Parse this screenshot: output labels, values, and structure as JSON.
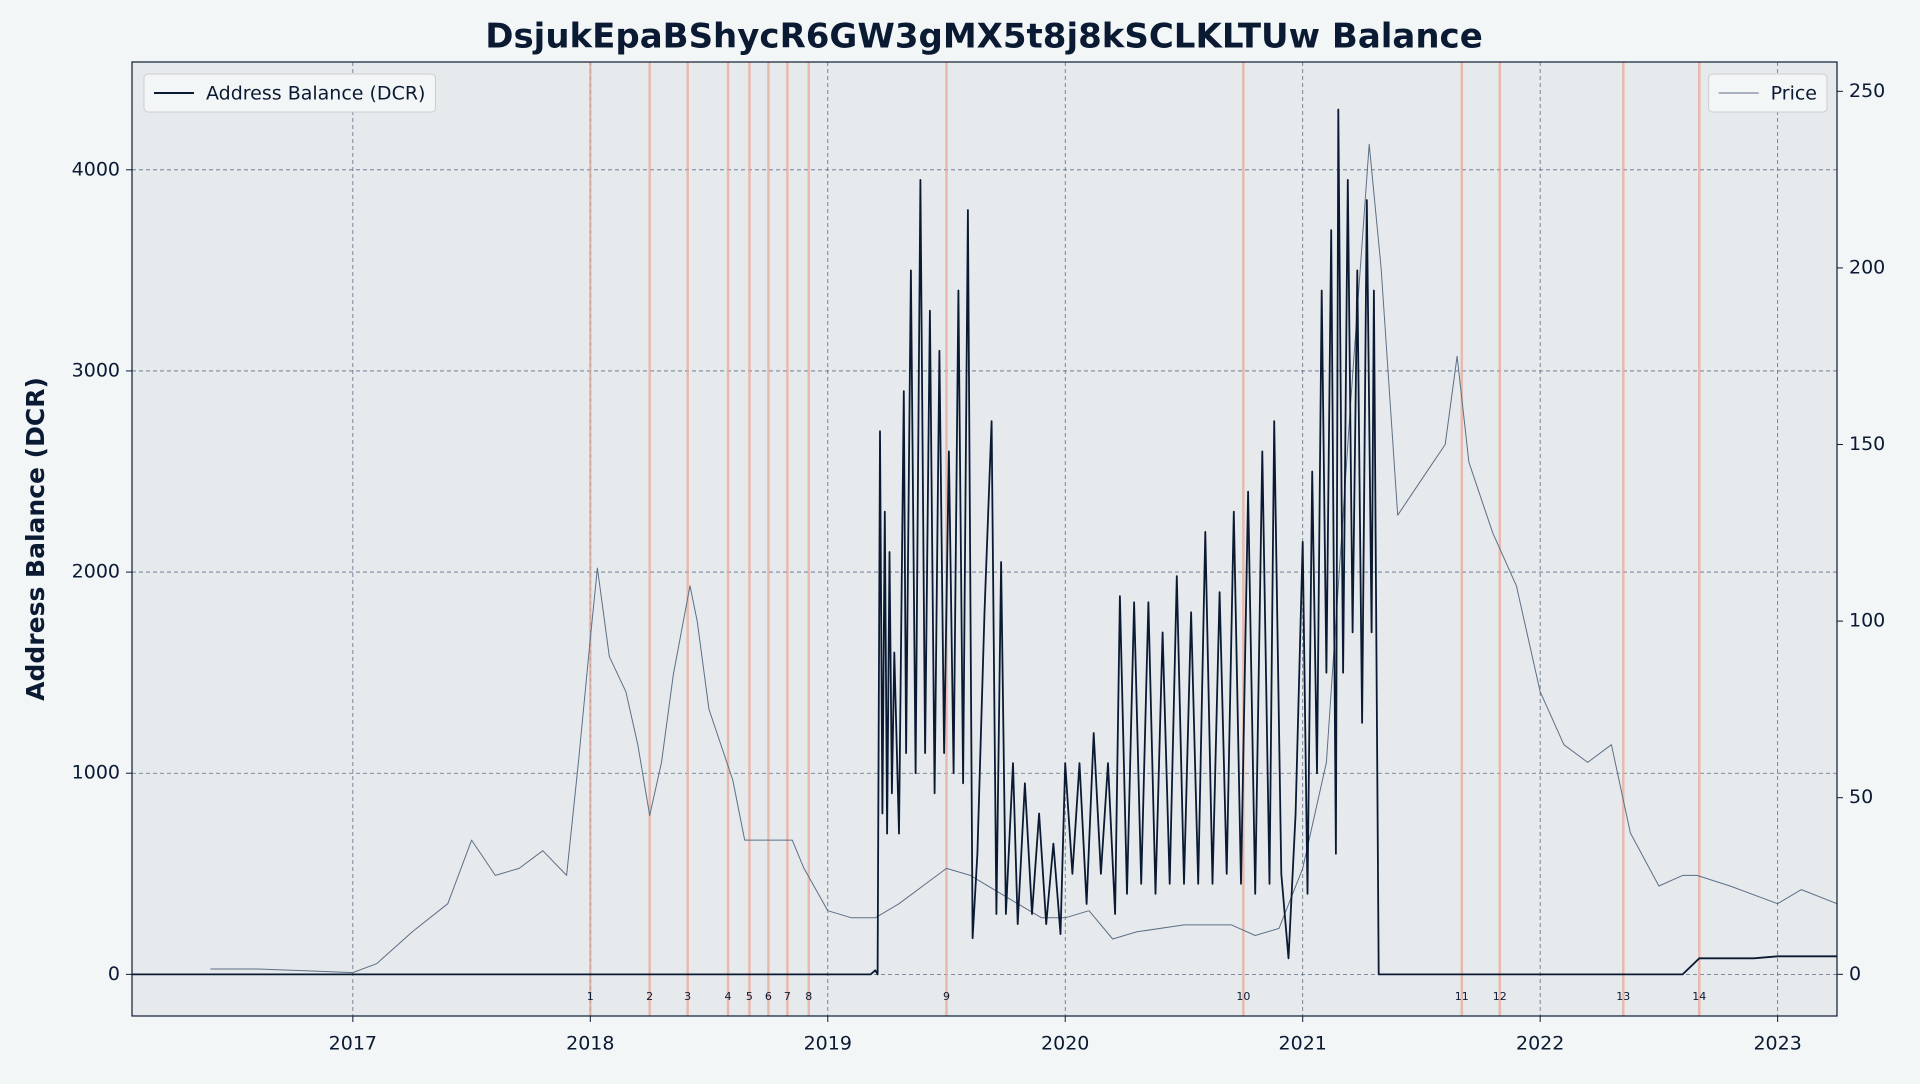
{
  "chart_data": {
    "type": "line",
    "title": "DsjukEpaBShycR6GW3gMX5t8j8kSCLKLTUw Balance",
    "ylabel": "Address Balance (DCR)",
    "xlim": [
      2016.07,
      2023.25
    ],
    "xticks": [
      2017,
      2018,
      2019,
      2020,
      2021,
      2022,
      2023
    ],
    "ylim": [
      -207,
      4536
    ],
    "yticks": [
      0,
      1000,
      2000,
      3000,
      4000
    ],
    "y2lim": [
      -11.8,
      258.3
    ],
    "y2ticks": [
      0,
      50,
      100,
      150,
      200,
      250
    ],
    "grid": true,
    "events": [
      {
        "x": 2018.0,
        "label": "1"
      },
      {
        "x": 2018.25,
        "label": "2"
      },
      {
        "x": 2018.41,
        "label": "3"
      },
      {
        "x": 2018.58,
        "label": "4"
      },
      {
        "x": 2018.67,
        "label": "5"
      },
      {
        "x": 2018.75,
        "label": "6"
      },
      {
        "x": 2018.83,
        "label": "7"
      },
      {
        "x": 2018.92,
        "label": "8"
      },
      {
        "x": 2019.5,
        "label": "9"
      },
      {
        "x": 2020.75,
        "label": "10"
      },
      {
        "x": 2021.67,
        "label": "11"
      },
      {
        "x": 2021.83,
        "label": "12"
      },
      {
        "x": 2022.35,
        "label": "13"
      },
      {
        "x": 2022.67,
        "label": "14"
      }
    ],
    "event_color": "#e8a593",
    "series": [
      {
        "name": "Address Balance (DCR)",
        "color": "#0b1a33",
        "axis": "y",
        "legend_loc": "upper left",
        "x": [
          2016.07,
          2019.18,
          2019.2,
          2019.21,
          2019.22,
          2019.23,
          2019.24,
          2019.25,
          2019.26,
          2019.27,
          2019.28,
          2019.3,
          2019.32,
          2019.33,
          2019.35,
          2019.37,
          2019.39,
          2019.41,
          2019.43,
          2019.45,
          2019.47,
          2019.49,
          2019.51,
          2019.53,
          2019.55,
          2019.57,
          2019.59,
          2019.61,
          2019.63,
          2019.66,
          2019.69,
          2019.71,
          2019.73,
          2019.75,
          2019.78,
          2019.8,
          2019.83,
          2019.86,
          2019.89,
          2019.92,
          2019.95,
          2019.98,
          2020.0,
          2020.03,
          2020.06,
          2020.09,
          2020.12,
          2020.15,
          2020.18,
          2020.21,
          2020.23,
          2020.26,
          2020.29,
          2020.32,
          2020.35,
          2020.38,
          2020.41,
          2020.44,
          2020.47,
          2020.5,
          2020.53,
          2020.56,
          2020.59,
          2020.62,
          2020.65,
          2020.68,
          2020.71,
          2020.74,
          2020.77,
          2020.8,
          2020.83,
          2020.86,
          2020.88,
          2020.91,
          2020.94,
          2020.97,
          2021.0,
          2021.02,
          2021.04,
          2021.06,
          2021.08,
          2021.1,
          2021.12,
          2021.14,
          2021.15,
          2021.17,
          2021.19,
          2021.21,
          2021.23,
          2021.25,
          2021.27,
          2021.29,
          2021.3,
          2021.32,
          2022.6,
          2022.67,
          2022.9,
          2023.0,
          2023.25
        ],
        "values": [
          0,
          0,
          20,
          0,
          2700,
          800,
          2300,
          700,
          2100,
          900,
          1600,
          700,
          2900,
          1100,
          3500,
          1000,
          3950,
          1100,
          3300,
          900,
          3100,
          1100,
          2600,
          1000,
          3400,
          950,
          3800,
          180,
          600,
          1800,
          2750,
          300,
          2050,
          300,
          1050,
          250,
          950,
          300,
          800,
          250,
          650,
          200,
          1050,
          500,
          1050,
          350,
          1200,
          500,
          1050,
          300,
          1880,
          400,
          1850,
          450,
          1850,
          400,
          1700,
          450,
          1980,
          450,
          1800,
          450,
          2200,
          450,
          1900,
          500,
          2300,
          450,
          2400,
          400,
          2600,
          450,
          2750,
          500,
          80,
          800,
          2150,
          400,
          2500,
          1000,
          3400,
          1500,
          3700,
          600,
          4300,
          1500,
          3950,
          1700,
          3500,
          1250,
          3850,
          1700,
          3400,
          0,
          0,
          80,
          80,
          90,
          90
        ]
      },
      {
        "name": "Price",
        "color": "#5d6f85",
        "axis": "y2",
        "legend_loc": "upper right",
        "x": [
          2016.4,
          2016.6,
          2016.8,
          2017.0,
          2017.1,
          2017.25,
          2017.4,
          2017.5,
          2017.6,
          2017.7,
          2017.8,
          2017.9,
          2017.95,
          2018.0,
          2018.03,
          2018.08,
          2018.15,
          2018.2,
          2018.25,
          2018.3,
          2018.35,
          2018.42,
          2018.45,
          2018.5,
          2018.6,
          2018.65,
          2018.75,
          2018.85,
          2018.9,
          2019.0,
          2019.1,
          2019.2,
          2019.3,
          2019.4,
          2019.5,
          2019.6,
          2019.7,
          2019.8,
          2019.9,
          2020.0,
          2020.1,
          2020.2,
          2020.3,
          2020.5,
          2020.7,
          2020.8,
          2020.9,
          2021.0,
          2021.1,
          2021.2,
          2021.28,
          2021.33,
          2021.4,
          2021.5,
          2021.6,
          2021.65,
          2021.7,
          2021.8,
          2021.9,
          2022.0,
          2022.1,
          2022.2,
          2022.3,
          2022.38,
          2022.5,
          2022.6,
          2022.66,
          2022.8,
          2023.0,
          2023.1,
          2023.25
        ],
        "values": [
          1.5,
          1.5,
          1,
          0.5,
          3,
          12,
          20,
          38,
          28,
          30,
          35,
          28,
          60,
          95,
          115,
          90,
          80,
          65,
          45,
          60,
          85,
          110,
          100,
          75,
          55,
          38,
          38,
          38,
          30,
          18,
          16,
          16,
          20,
          25,
          30,
          28,
          24,
          20,
          16,
          16,
          18,
          10,
          12,
          14,
          14,
          11,
          13,
          30,
          60,
          160,
          235,
          200,
          130,
          140,
          150,
          175,
          145,
          125,
          110,
          80,
          65,
          60,
          65,
          40,
          25,
          28,
          28,
          25,
          20,
          24,
          20
        ]
      }
    ]
  }
}
